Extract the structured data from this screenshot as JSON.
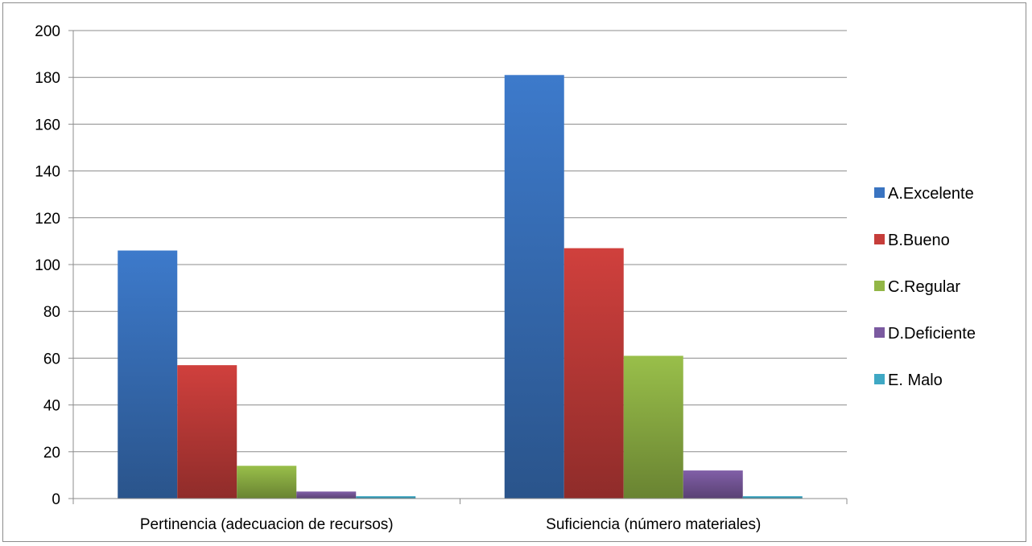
{
  "chart_data": {
    "type": "bar",
    "title": "",
    "xlabel": "",
    "ylabel": "",
    "categories": [
      "Pertinencia (adecuacion de recursos)",
      "Suficiencia (número materiales)"
    ],
    "series": [
      {
        "name": "A.Excelente",
        "values": [
          106,
          181
        ],
        "color": "#3a74c1"
      },
      {
        "name": "B.Bueno",
        "values": [
          57,
          107
        ],
        "color": "#c63d3a"
      },
      {
        "name": "C.Regular",
        "values": [
          14,
          61
        ],
        "color": "#92b646"
      },
      {
        "name": "D.Deficiente",
        "values": [
          3,
          12
        ],
        "color": "#7b5aa0"
      },
      {
        "name": "E. Malo",
        "values": [
          1,
          1
        ],
        "color": "#3fa8c4"
      }
    ],
    "ylim": [
      0,
      200
    ],
    "yticks": [
      0,
      20,
      40,
      60,
      80,
      100,
      120,
      140,
      160,
      180,
      200
    ],
    "grid": true,
    "legend_position": "right"
  }
}
